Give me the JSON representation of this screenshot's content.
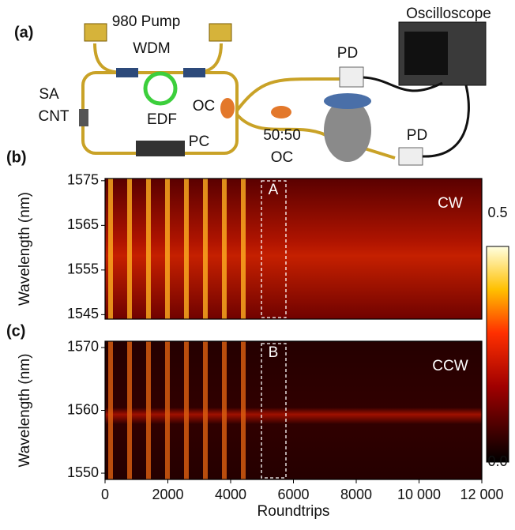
{
  "panel_a": {
    "label": "(a)",
    "pump": "980 Pump",
    "wdm": "WDM",
    "oscilloscope": "Oscilloscope",
    "pd_top": "PD",
    "sa": "SA",
    "cnt": "CNT",
    "edf": "EDF",
    "oc_left": "OC",
    "pc": "PC",
    "splitter_ratio": "50:50",
    "oc_right": "OC",
    "pd_bottom": "PD"
  },
  "panel_b": {
    "label": "(b)",
    "ylabel": "Wavelength (nm)",
    "ylim": [
      1544,
      1575.5
    ],
    "yticks": [
      1545,
      1555,
      1565,
      1575
    ],
    "box_label": "A",
    "direction": "CW"
  },
  "panel_c": {
    "label": "(c)",
    "ylabel": "Wavelength (nm)",
    "ylim": [
      1549,
      1571
    ],
    "yticks": [
      1550,
      1560,
      1570
    ],
    "box_label": "B",
    "direction": "CCW"
  },
  "x_axis": {
    "label": "Roundtrips",
    "xlim": [
      0,
      12000
    ],
    "xticks": [
      0,
      2000,
      4000,
      6000,
      8000,
      {
        "value": 10000,
        "label": "10 000"
      },
      {
        "value": 12000,
        "label": "12 000"
      }
    ]
  },
  "colorbar": {
    "lim": [
      0,
      0.5
    ],
    "ticks": [
      {
        "value": 0,
        "label": "0.0"
      },
      0.5
    ]
  }
}
